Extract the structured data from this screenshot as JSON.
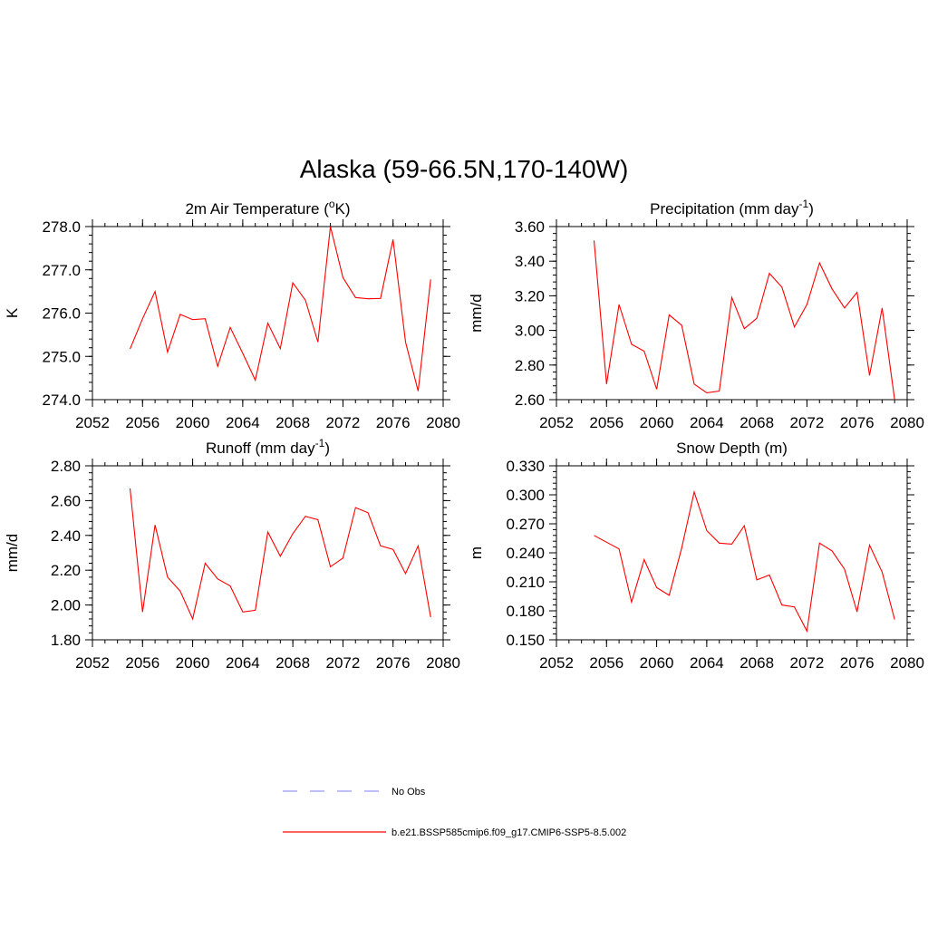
{
  "figure_title": "Alaska (59-66.5N,170-140W)",
  "colors": {
    "model": "#ff0000",
    "obs": "#9999ff",
    "axes": "#000000"
  },
  "legend": [
    {
      "label": "No Obs",
      "style": "dashed",
      "color": "#9999ff"
    },
    {
      "label": "b.e21.BSSP585cmip6.f09_g17.CMIP6-SSP5-8.5.002",
      "style": "solid",
      "color": "#ff0000"
    }
  ],
  "chart_data": [
    {
      "type": "line",
      "title": "2m Air Temperature (",
      "title_sup": "o",
      "title_after": "K)",
      "ylabel": "K",
      "xlim": [
        2052,
        2080
      ],
      "ylim": [
        274.0,
        278.0
      ],
      "x_ticks": [
        "2052",
        "2056",
        "2060",
        "2064",
        "2068",
        "2072",
        "2076",
        "2080"
      ],
      "y_ticks": [
        "274.0",
        "275.0",
        "276.0",
        "277.0",
        "278.0"
      ],
      "x_minor_step": 1,
      "y_minor_step": 0.2,
      "series": [
        {
          "x": [
            2055,
            2056,
            2057,
            2058,
            2059,
            2060,
            2061,
            2062,
            2063,
            2064,
            2065,
            2066,
            2067,
            2068,
            2069,
            2070,
            2071,
            2072,
            2073,
            2074,
            2075,
            2076,
            2077,
            2078,
            2079
          ],
          "values": [
            275.17,
            275.87,
            276.5,
            275.1,
            275.97,
            275.85,
            275.87,
            274.77,
            275.67,
            275.07,
            274.45,
            275.77,
            275.18,
            276.7,
            276.3,
            275.33,
            278.0,
            276.82,
            276.36,
            276.33,
            276.34,
            277.7,
            275.33,
            274.2,
            276.78
          ]
        }
      ]
    },
    {
      "type": "line",
      "title": "Precipitation (mm day",
      "title_sup": "-1",
      "title_after": ")",
      "ylabel": "mm/d",
      "xlim": [
        2052,
        2080
      ],
      "ylim": [
        2.6,
        3.6
      ],
      "x_ticks": [
        "2052",
        "2056",
        "2060",
        "2064",
        "2068",
        "2072",
        "2076",
        "2080"
      ],
      "y_ticks": [
        "2.60",
        "2.80",
        "3.00",
        "3.20",
        "3.40",
        "3.60"
      ],
      "x_minor_step": 1,
      "y_minor_step": 0.04,
      "series": [
        {
          "x": [
            2055,
            2056,
            2057,
            2058,
            2059,
            2060,
            2061,
            2062,
            2063,
            2064,
            2065,
            2066,
            2067,
            2068,
            2069,
            2070,
            2071,
            2072,
            2073,
            2074,
            2075,
            2076,
            2077,
            2078,
            2079
          ],
          "values": [
            3.52,
            2.69,
            3.15,
            2.92,
            2.88,
            2.66,
            3.09,
            3.03,
            2.69,
            2.64,
            2.65,
            3.19,
            3.01,
            3.07,
            3.33,
            3.25,
            3.02,
            3.15,
            3.39,
            3.24,
            3.13,
            3.22,
            2.74,
            3.13,
            2.6
          ]
        }
      ]
    },
    {
      "type": "line",
      "title": "Runoff (mm day",
      "title_sup": "-1",
      "title_after": ")",
      "ylabel": "mm/d",
      "xlim": [
        2052,
        2080
      ],
      "ylim": [
        1.8,
        2.8
      ],
      "x_ticks": [
        "2052",
        "2056",
        "2060",
        "2064",
        "2068",
        "2072",
        "2076",
        "2080"
      ],
      "y_ticks": [
        "1.80",
        "2.00",
        "2.20",
        "2.40",
        "2.60",
        "2.80"
      ],
      "x_minor_step": 1,
      "y_minor_step": 0.04,
      "series": [
        {
          "x": [
            2055,
            2056,
            2057,
            2058,
            2059,
            2060,
            2061,
            2062,
            2063,
            2064,
            2065,
            2066,
            2067,
            2068,
            2069,
            2070,
            2071,
            2072,
            2073,
            2074,
            2075,
            2076,
            2077,
            2078,
            2079
          ],
          "values": [
            2.67,
            1.96,
            2.46,
            2.16,
            2.08,
            1.92,
            2.24,
            2.15,
            2.11,
            1.96,
            1.97,
            2.42,
            2.28,
            2.41,
            2.51,
            2.49,
            2.22,
            2.27,
            2.56,
            2.53,
            2.34,
            2.32,
            2.18,
            2.34,
            1.93
          ]
        }
      ]
    },
    {
      "type": "line",
      "title": "Snow Depth (m)",
      "title_sup": "",
      "title_after": "",
      "ylabel": "m",
      "xlim": [
        2052,
        2080
      ],
      "ylim": [
        0.15,
        0.33
      ],
      "x_ticks": [
        "2052",
        "2056",
        "2060",
        "2064",
        "2068",
        "2072",
        "2076",
        "2080"
      ],
      "y_ticks": [
        "0.150",
        "0.180",
        "0.210",
        "0.240",
        "0.270",
        "0.300",
        "0.330"
      ],
      "x_minor_step": 1,
      "y_minor_step": 0.006,
      "series": [
        {
          "x": [
            2055,
            2056,
            2057,
            2058,
            2059,
            2060,
            2061,
            2062,
            2063,
            2064,
            2065,
            2066,
            2067,
            2068,
            2069,
            2070,
            2071,
            2072,
            2073,
            2074,
            2075,
            2076,
            2077,
            2078,
            2079
          ],
          "values": [
            0.258,
            0.251,
            0.244,
            0.189,
            0.233,
            0.204,
            0.196,
            0.245,
            0.303,
            0.263,
            0.25,
            0.249,
            0.268,
            0.212,
            0.217,
            0.186,
            0.184,
            0.159,
            0.25,
            0.242,
            0.223,
            0.179,
            0.248,
            0.22,
            0.171
          ]
        }
      ]
    }
  ]
}
